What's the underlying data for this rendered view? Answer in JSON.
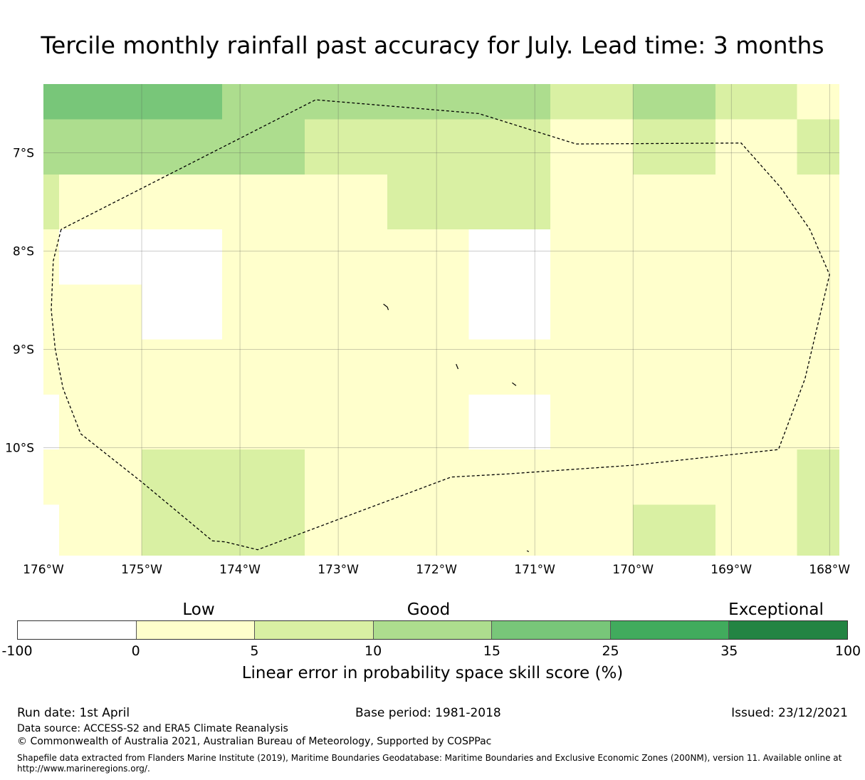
{
  "title": "Tercile monthly rainfall past accuracy for July. Lead time: 3 months",
  "map": {
    "lon_range": [
      -176,
      -167.9
    ],
    "lat_range": [
      -11.1,
      -6.3
    ],
    "lon_ticks": [
      {
        "value": -176,
        "label": "176°W"
      },
      {
        "value": -175,
        "label": "175°W"
      },
      {
        "value": -174,
        "label": "174°W"
      },
      {
        "value": -173,
        "label": "173°W"
      },
      {
        "value": -172,
        "label": "172°W"
      },
      {
        "value": -171,
        "label": "171°W"
      },
      {
        "value": -170,
        "label": "170°W"
      },
      {
        "value": -169,
        "label": "169°W"
      },
      {
        "value": -168,
        "label": "168°W"
      }
    ],
    "lat_ticks": [
      {
        "value": -7,
        "label": "7°S"
      },
      {
        "value": -8,
        "label": "8°S"
      },
      {
        "value": -9,
        "label": "9°S"
      },
      {
        "value": -10,
        "label": "10°S"
      }
    ],
    "cell_classes": [
      "#ffffff",
      "#ffffcc",
      "#d9f0a3",
      "#addd8e",
      "#78c679",
      "#41ab5d",
      "#238443"
    ],
    "grid_cells": [
      {
        "lon0": -176.0,
        "lon1": -175.0,
        "lat0": -6.66,
        "lat1": -6.3,
        "c": 4
      },
      {
        "lon0": -175.0,
        "lon1": -174.18,
        "lat0": -6.66,
        "lat1": -6.3,
        "c": 4
      },
      {
        "lon0": -174.18,
        "lon1": -170.84,
        "lat0": -6.66,
        "lat1": -6.3,
        "c": 3
      },
      {
        "lon0": -170.84,
        "lon1": -170.0,
        "lat0": -6.66,
        "lat1": -6.3,
        "c": 2
      },
      {
        "lon0": -170.0,
        "lon1": -169.16,
        "lat0": -6.66,
        "lat1": -6.3,
        "c": 3
      },
      {
        "lon0": -169.16,
        "lon1": -168.33,
        "lat0": -6.66,
        "lat1": -6.3,
        "c": 2
      },
      {
        "lon0": -168.33,
        "lon1": -167.9,
        "lat0": -6.66,
        "lat1": -6.3,
        "c": 1
      },
      {
        "lon0": -176.0,
        "lon1": -173.34,
        "lat0": -7.22,
        "lat1": -6.66,
        "c": 3
      },
      {
        "lon0": -173.34,
        "lon1": -170.84,
        "lat0": -7.22,
        "lat1": -6.66,
        "c": 2
      },
      {
        "lon0": -170.84,
        "lon1": -170.0,
        "lat0": -7.22,
        "lat1": -6.66,
        "c": 1
      },
      {
        "lon0": -170.0,
        "lon1": -169.16,
        "lat0": -7.22,
        "lat1": -6.66,
        "c": 2
      },
      {
        "lon0": -169.16,
        "lon1": -168.33,
        "lat0": -7.22,
        "lat1": -6.66,
        "c": 1
      },
      {
        "lon0": -168.33,
        "lon1": -167.9,
        "lat0": -7.22,
        "lat1": -6.66,
        "c": 2
      },
      {
        "lon0": -176.0,
        "lon1": -175.84,
        "lat0": -7.78,
        "lat1": -7.22,
        "c": 2
      },
      {
        "lon0": -175.84,
        "lon1": -172.5,
        "lat0": -7.78,
        "lat1": -7.22,
        "c": 1
      },
      {
        "lon0": -172.5,
        "lon1": -170.84,
        "lat0": -7.78,
        "lat1": -7.22,
        "c": 2
      },
      {
        "lon0": -170.84,
        "lon1": -167.9,
        "lat0": -7.78,
        "lat1": -7.22,
        "c": 1
      },
      {
        "lon0": -176.0,
        "lon1": -175.84,
        "lat0": -8.34,
        "lat1": -7.78,
        "c": 1
      },
      {
        "lon0": -175.84,
        "lon1": -175.0,
        "lat0": -8.34,
        "lat1": -7.78,
        "c": 0
      },
      {
        "lon0": -175.0,
        "lon1": -174.18,
        "lat0": -8.9,
        "lat1": -7.78,
        "c": 0
      },
      {
        "lon0": -174.18,
        "lon1": -171.67,
        "lat0": -8.9,
        "lat1": -7.78,
        "c": 1
      },
      {
        "lon0": -171.67,
        "lon1": -170.84,
        "lat0": -8.9,
        "lat1": -7.78,
        "c": 0
      },
      {
        "lon0": -170.84,
        "lon1": -167.9,
        "lat0": -8.9,
        "lat1": -7.78,
        "c": 1
      },
      {
        "lon0": -176.0,
        "lon1": -175.0,
        "lat0": -8.9,
        "lat1": -8.34,
        "c": 1
      },
      {
        "lon0": -176.0,
        "lon1": -167.9,
        "lat0": -9.46,
        "lat1": -8.9,
        "c": 1
      },
      {
        "lon0": -176.0,
        "lon1": -175.84,
        "lat0": -10.02,
        "lat1": -9.46,
        "c": 0
      },
      {
        "lon0": -175.84,
        "lon1": -171.67,
        "lat0": -10.02,
        "lat1": -9.46,
        "c": 1
      },
      {
        "lon0": -171.67,
        "lon1": -170.84,
        "lat0": -10.02,
        "lat1": -9.46,
        "c": 0
      },
      {
        "lon0": -170.84,
        "lon1": -167.9,
        "lat0": -10.02,
        "lat1": -9.46,
        "c": 1
      },
      {
        "lon0": -176.0,
        "lon1": -175.0,
        "lat0": -10.58,
        "lat1": -10.02,
        "c": 1
      },
      {
        "lon0": -175.0,
        "lon1": -173.34,
        "lat0": -10.58,
        "lat1": -10.02,
        "c": 2
      },
      {
        "lon0": -173.34,
        "lon1": -168.33,
        "lat0": -10.58,
        "lat1": -10.02,
        "c": 1
      },
      {
        "lon0": -168.33,
        "lon1": -167.9,
        "lat0": -10.58,
        "lat1": -10.02,
        "c": 2
      },
      {
        "lon0": -176.0,
        "lon1": -175.84,
        "lat0": -11.1,
        "lat1": -10.58,
        "c": 0
      },
      {
        "lon0": -175.84,
        "lon1": -175.0,
        "lat0": -11.1,
        "lat1": -10.58,
        "c": 1
      },
      {
        "lon0": -175.0,
        "lon1": -173.34,
        "lat0": -11.1,
        "lat1": -10.58,
        "c": 2
      },
      {
        "lon0": -173.34,
        "lon1": -170.0,
        "lat0": -11.1,
        "lat1": -10.58,
        "c": 1
      },
      {
        "lon0": -170.0,
        "lon1": -169.16,
        "lat0": -11.1,
        "lat1": -10.58,
        "c": 2
      },
      {
        "lon0": -169.16,
        "lon1": -168.33,
        "lat0": -11.1,
        "lat1": -10.58,
        "c": 1
      },
      {
        "lon0": -168.33,
        "lon1": -167.9,
        "lat0": -11.1,
        "lat1": -10.58,
        "c": 2
      }
    ],
    "eez_boundary": [
      [
        -175.82,
        -7.78
      ],
      [
        -175.9,
        -8.1
      ],
      [
        -175.92,
        -8.6
      ],
      [
        -175.88,
        -9.0
      ],
      [
        -175.8,
        -9.4
      ],
      [
        -175.62,
        -9.86
      ],
      [
        -175.0,
        -10.35
      ],
      [
        -174.28,
        -10.95
      ],
      [
        -174.15,
        -10.96
      ],
      [
        -173.82,
        -11.04
      ],
      [
        -171.85,
        -10.3
      ],
      [
        -171.3,
        -10.27
      ],
      [
        -170.0,
        -10.18
      ],
      [
        -168.52,
        -10.02
      ],
      [
        -168.25,
        -9.3
      ],
      [
        -168.0,
        -8.24
      ],
      [
        -168.2,
        -7.78
      ],
      [
        -168.5,
        -7.35
      ],
      [
        -168.9,
        -6.9
      ],
      [
        -170.58,
        -6.91
      ],
      [
        -171.57,
        -6.6
      ],
      [
        -173.23,
        -6.46
      ],
      [
        -175.82,
        -7.78
      ]
    ],
    "islands": [
      [
        [
          -172.54,
          -8.54
        ],
        [
          -172.5,
          -8.57
        ],
        [
          -172.49,
          -8.6
        ]
      ],
      [
        [
          -171.8,
          -9.15
        ],
        [
          -171.78,
          -9.2
        ]
      ],
      [
        [
          -171.23,
          -9.34
        ],
        [
          -171.19,
          -9.37
        ]
      ],
      [
        [
          -171.08,
          -11.05
        ],
        [
          -171.06,
          -11.06
        ]
      ]
    ]
  },
  "colorbar": {
    "colors": [
      "#ffffff",
      "#ffffcc",
      "#d9f0a3",
      "#addd8e",
      "#78c679",
      "#41ab5d",
      "#238443"
    ],
    "ticks": [
      "-100",
      "0",
      "5",
      "10",
      "15",
      "25",
      "35",
      "100"
    ],
    "class_labels": [
      "Low",
      "Good",
      "Exceptional"
    ],
    "axis_label": "Linear error in probability space skill score (%)"
  },
  "footer": {
    "run_date": "Run date: 1st April",
    "base_period": "Base period: 1981-2018",
    "issued": "Issued: 23/12/2021",
    "data_source": "Data source: ACCESS-S2 and ERA5 Climate Reanalysis",
    "copyright": "© Commonwealth of Australia 2021, Australian Bureau of Meteorology, Supported by COSPPac",
    "shapefile_note": "Shapefile data extracted from Flanders Marine Institute (2019), Maritime Boundaries Geodatabase: Maritime Boundaries and Exclusive Economic Zones (200NM), version 11. Available online at http://www.marineregions.org/."
  }
}
